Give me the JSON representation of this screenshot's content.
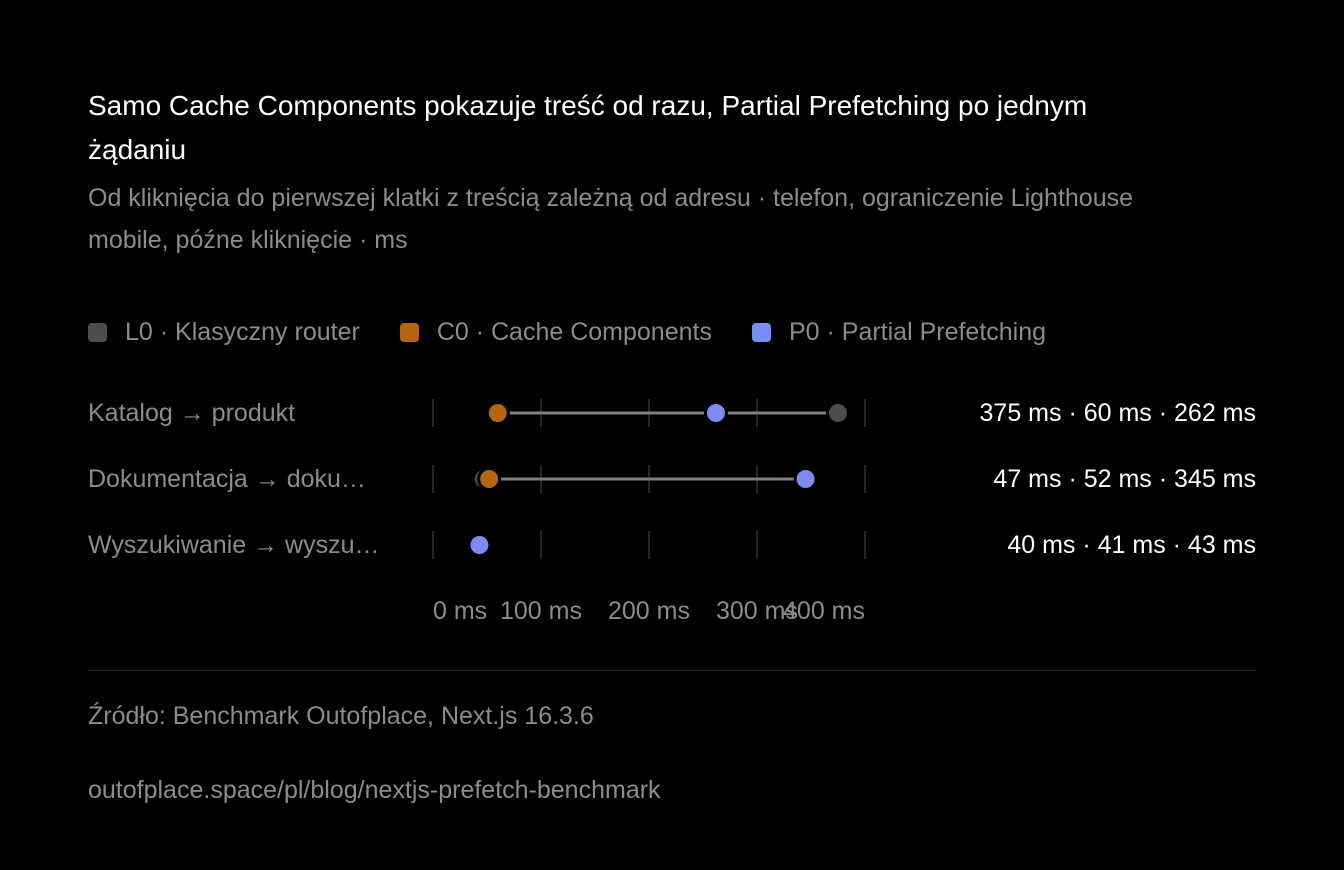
{
  "chart_data": {
    "type": "dot-range",
    "title": "Samo Cache Components pokazuje treść od razu, Partial Prefetching po jednym żądaniu",
    "subtitle": "Od kliknięcia do pierwszej klatki z treścią zależną od adresu · telefon, ograniczenie Lighthouse mobile, późne kliknięcie · ms",
    "legend": [
      {
        "key": "L0",
        "label": "L0 · Klasyczny router",
        "color": "#4d4d4d"
      },
      {
        "key": "C0",
        "label": "C0 · Cache Components",
        "color": "#b5650d"
      },
      {
        "key": "P0",
        "label": "P0 · Partial Prefetching",
        "color": "#7b8cf0"
      }
    ],
    "x": {
      "ticks": [
        0,
        100,
        200,
        300,
        400
      ],
      "tick_labels": [
        "0 ms",
        "100 ms",
        "200 ms",
        "300 ms",
        "400 ms"
      ],
      "range": [
        0,
        400
      ]
    },
    "rows": [
      {
        "label": "Katalog → produkt",
        "values_text": "375 ms · 60 ms · 262 ms",
        "L0": 375,
        "C0": 60,
        "P0": 262
      },
      {
        "label": "Dokumentacja → doku…",
        "values_text": "47 ms · 52 ms · 345 ms",
        "L0": 47,
        "C0": 52,
        "P0": 345
      },
      {
        "label": "Wyszukiwanie → wyszu…",
        "values_text": "40 ms · 41 ms · 43 ms",
        "L0": 40,
        "C0": 41,
        "P0": 43
      }
    ],
    "source": "Źródło: Benchmark Outofplace, Next.js 16.3.6",
    "url": "outofplace.space/pl/blog/nextjs-prefetch-benchmark"
  }
}
